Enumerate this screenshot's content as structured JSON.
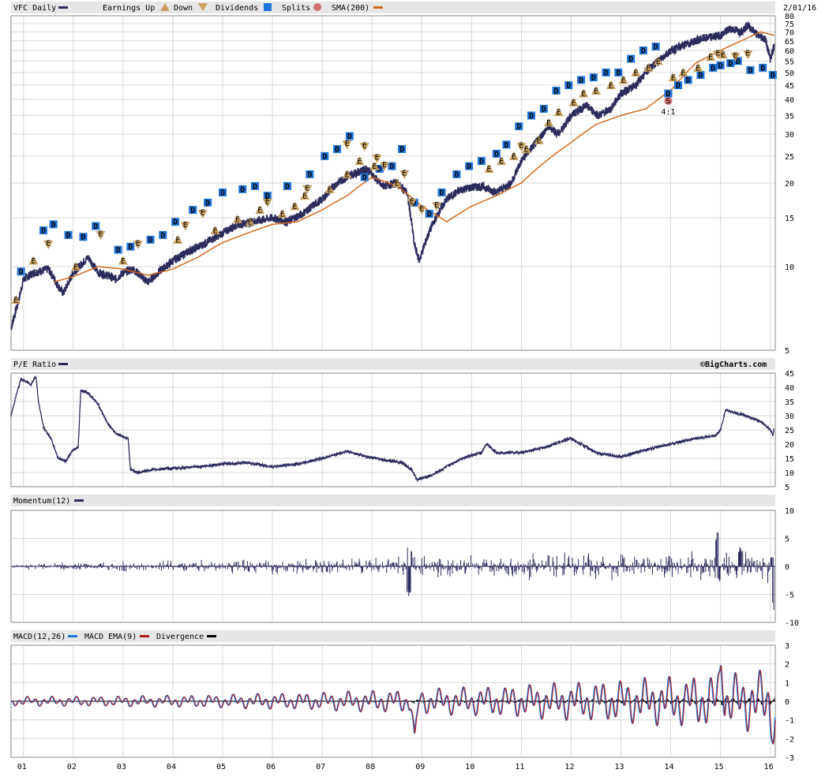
{
  "date_label": "2/01/16",
  "watermark": "©BigCharts.com",
  "legend": {
    "main": {
      "ticker": "VFC Daily",
      "earnings_up": "Earnings Up",
      "down": "Down",
      "dividends": "Dividends",
      "splits": "Splits",
      "sma": "SMA(200)"
    },
    "pe": {
      "label": "P/E Ratio"
    },
    "momentum": {
      "label": "Momentum(12)"
    },
    "macd": {
      "macd": "MACD(12,26)",
      "ema": "MACD EMA(9)",
      "divergence": "Divergence"
    }
  },
  "colors": {
    "price": "#2b2b5c",
    "sma": "#d2691e",
    "dividend": "#1e73d8",
    "earnings": "#c8a060",
    "split": "#d07070",
    "macd": "#1e73d8",
    "macd_ema": "#b01818",
    "divergence": "#000000"
  },
  "chart_data": [
    {
      "type": "line",
      "name": "price",
      "y_scale": "log",
      "ylim": [
        5,
        80
      ],
      "yticks": [
        5,
        10,
        15,
        20,
        25,
        30,
        35,
        40,
        45,
        50,
        55,
        60,
        65,
        70,
        75,
        80
      ],
      "x_ticks": [
        "01",
        "02",
        "03",
        "04",
        "05",
        "06",
        "07",
        "08",
        "09",
        "10",
        "11",
        "12",
        "13",
        "14",
        "15",
        "16"
      ],
      "x_range": [
        2000.75,
        2016.1
      ],
      "series": [
        {
          "name": "VFC Daily",
          "x": [
            2000.75,
            2000.9,
            2001.0,
            2001.2,
            2001.5,
            2001.7,
            2001.8,
            2002.0,
            2002.3,
            2002.5,
            2002.7,
            2002.85,
            2003.0,
            2003.2,
            2003.5,
            2003.7,
            2004.0,
            2004.3,
            2004.6,
            2005.0,
            2005.3,
            2005.6,
            2006.0,
            2006.3,
            2006.6,
            2007.0,
            2007.3,
            2007.6,
            2007.9,
            2008.2,
            2008.5,
            2008.7,
            2008.85,
            2008.95,
            2009.2,
            2009.5,
            2009.8,
            2010.2,
            2010.5,
            2010.8,
            2011.0,
            2011.3,
            2011.55,
            2011.75,
            2012.0,
            2012.3,
            2012.55,
            2012.8,
            2013.0,
            2013.3,
            2013.5,
            2013.8,
            2014.0,
            2014.3,
            2014.6,
            2015.0,
            2015.2,
            2015.4,
            2015.55,
            2015.75,
            2015.9,
            2016.0,
            2016.08
          ],
          "y": [
            6.0,
            7.5,
            9.0,
            9.5,
            9.8,
            8.5,
            8.0,
            9.5,
            10.8,
            9.5,
            9.3,
            9.0,
            9.5,
            9.8,
            8.8,
            9.5,
            10.5,
            11.3,
            12.0,
            13.2,
            14.2,
            14.5,
            15.0,
            14.5,
            15.5,
            17.5,
            20.0,
            21.5,
            22.5,
            19.5,
            20.0,
            18.5,
            12.0,
            10.5,
            14.0,
            17.5,
            19.0,
            19.5,
            18.5,
            20.0,
            24.0,
            28.0,
            32.0,
            30.0,
            35.0,
            38.0,
            35.0,
            37.0,
            42.0,
            45.0,
            50.0,
            56.0,
            60.0,
            63.0,
            66.0,
            68.0,
            72.0,
            70.0,
            74.0,
            68.0,
            66.0,
            56.0,
            62.0
          ]
        },
        {
          "name": "SMA(200)",
          "x": [
            2001.6,
            2002.0,
            2002.5,
            2003.0,
            2003.5,
            2004.0,
            2004.5,
            2005.0,
            2005.5,
            2006.0,
            2006.5,
            2007.0,
            2007.5,
            2008.0,
            2008.5,
            2009.0,
            2009.5,
            2010.0,
            2010.5,
            2011.0,
            2011.5,
            2012.0,
            2012.5,
            2013.0,
            2013.5,
            2014.0,
            2014.5,
            2015.0,
            2015.5,
            2015.8,
            2016.08
          ],
          "y": [
            8.8,
            9.2,
            10.0,
            9.8,
            9.3,
            9.8,
            10.8,
            12.2,
            13.2,
            14.2,
            14.5,
            16.0,
            18.0,
            21.0,
            19.5,
            16.5,
            14.5,
            16.5,
            18.0,
            20.0,
            24.0,
            28.0,
            32.5,
            35.0,
            37.0,
            43.0,
            54.0,
            60.0,
            66.0,
            70.0,
            68.0
          ]
        }
      ],
      "markers": {
        "dividends_x": [
          2000.95,
          2001.4,
          2001.6,
          2001.9,
          2002.2,
          2002.45,
          2002.9,
          2003.15,
          2003.55,
          2003.8,
          2004.05,
          2004.4,
          2004.7,
          2005.0,
          2005.4,
          2005.65,
          2005.9,
          2006.3,
          2006.75,
          2007.05,
          2007.3,
          2007.55,
          2007.85,
          2008.15,
          2008.4,
          2008.6,
          2008.85,
          2009.15,
          2009.4,
          2009.7,
          2009.95,
          2010.2,
          2010.5,
          2010.7,
          2010.95,
          2011.2,
          2011.45,
          2011.7,
          2011.95,
          2012.2,
          2012.45,
          2012.7,
          2012.95,
          2013.2,
          2013.45,
          2013.7,
          2013.95,
          2014.15,
          2014.35,
          2014.6,
          2014.85,
          2015.0,
          2015.2,
          2015.35,
          2015.6,
          2015.85,
          2016.05
        ],
        "dividends_y": [
          9.6,
          13.5,
          14.2,
          13.0,
          12.8,
          14.0,
          11.5,
          11.8,
          12.5,
          13.0,
          14.5,
          16.0,
          17.0,
          18.5,
          19.0,
          19.5,
          18.0,
          19.5,
          21.5,
          25.0,
          26.5,
          29.5,
          21.0,
          22.5,
          23.0,
          26.5,
          17.0,
          15.5,
          18.5,
          21.5,
          23.0,
          24.0,
          25.5,
          27.5,
          32.0,
          35.0,
          37.0,
          43.0,
          45.0,
          47.0,
          48.0,
          50.0,
          50.0,
          56.0,
          60.0,
          62.0,
          42.0,
          45.0,
          47.0,
          49.0,
          52.0,
          53.0,
          54.0,
          55.0,
          51.0,
          52.0,
          49.0
        ],
        "earnings_up_x": [
          2000.85,
          2001.2,
          2002.05,
          2003.0,
          2004.1,
          2004.85,
          2005.3,
          2005.55,
          2005.75,
          2006.2,
          2006.45,
          2006.65,
          2007.15,
          2007.5,
          2007.75,
          2008.05,
          2008.5,
          2010.35,
          2010.6,
          2010.85,
          2011.1,
          2011.35,
          2011.55,
          2011.75,
          2012.05,
          2012.25,
          2012.5,
          2012.8,
          2013.05,
          2013.3,
          2013.55,
          2013.75,
          2014.05,
          2014.25,
          2014.55,
          2014.8,
          2015.05
        ],
        "earnings_up_y": [
          7.6,
          10.5,
          10.0,
          10.5,
          12.5,
          13.5,
          14.8,
          14.5,
          16.0,
          15.5,
          16.5,
          18.0,
          19.0,
          21.5,
          24.0,
          23.0,
          20.0,
          22.5,
          24.0,
          25.0,
          26.5,
          28.5,
          33.0,
          36.0,
          39.0,
          42.0,
          43.0,
          45.0,
          47.0,
          50.0,
          52.0,
          55.0,
          48.0,
          50.0,
          52.0,
          57.0,
          58.0
        ],
        "down_x": [
          2001.5,
          2002.55,
          2003.3,
          2004.25,
          2004.6,
          2005.9,
          2006.7,
          2007.5,
          2007.85,
          2008.1,
          2008.25,
          2008.65,
          2008.8,
          2009.0,
          2009.3,
          2011.0,
          2014.95,
          2015.3,
          2015.55
        ],
        "down_y": [
          12.0,
          13.0,
          12.0,
          14.0,
          15.5,
          17.0,
          19.0,
          27.5,
          27.0,
          24.5,
          23.0,
          21.5,
          17.0,
          16.0,
          16.5,
          27.0,
          58.0,
          57.0,
          58.0
        ],
        "splits": [
          {
            "x": 2013.95,
            "y": 39.5,
            "label": "4:1"
          }
        ]
      }
    },
    {
      "type": "line",
      "name": "pe",
      "ylim": [
        5,
        45
      ],
      "yticks": [
        5,
        10,
        15,
        20,
        25,
        30,
        35,
        40,
        45
      ],
      "series": [
        {
          "name": "P/E Ratio",
          "x": [
            2000.75,
            2000.85,
            2000.95,
            2001.05,
            2001.15,
            2001.25,
            2001.3,
            2001.4,
            2001.55,
            2001.7,
            2001.85,
            2002.0,
            2002.1,
            2002.15,
            2002.3,
            2002.5,
            2002.7,
            2002.85,
            2003.0,
            2003.1,
            2003.15,
            2003.3,
            2003.6,
            2004.0,
            2004.5,
            2005.0,
            2005.5,
            2006.0,
            2006.5,
            2007.0,
            2007.5,
            2007.8,
            2008.2,
            2008.6,
            2008.8,
            2008.9,
            2009.2,
            2009.5,
            2009.8,
            2010.2,
            2010.3,
            2010.5,
            2011.0,
            2011.5,
            2011.8,
            2012.0,
            2012.5,
            2013.0,
            2013.5,
            2014.0,
            2014.5,
            2014.9,
            2015.0,
            2015.1,
            2015.5,
            2015.8,
            2016.0,
            2016.05,
            2016.08
          ],
          "y": [
            30.0,
            37.0,
            43.0,
            42.0,
            41.0,
            44.0,
            35.0,
            26.0,
            22.0,
            15.0,
            14.0,
            18.0,
            19.0,
            39.0,
            38.0,
            34.0,
            27.0,
            24.0,
            22.5,
            22.0,
            11.0,
            10.0,
            11.0,
            11.5,
            12.0,
            13.0,
            13.5,
            12.0,
            13.0,
            15.0,
            17.5,
            16.0,
            14.5,
            13.5,
            11.0,
            7.5,
            9.0,
            12.0,
            15.0,
            17.0,
            20.0,
            17.0,
            17.0,
            19.0,
            21.0,
            22.0,
            17.0,
            15.5,
            18.0,
            20.0,
            22.0,
            23.0,
            25.0,
            32.0,
            30.0,
            28.0,
            25.0,
            23.0,
            26.0
          ]
        }
      ]
    },
    {
      "type": "bar",
      "name": "momentum",
      "ylim": [
        -10,
        10
      ],
      "yticks": [
        -10,
        -5,
        0,
        5,
        10
      ],
      "series": [
        {
          "name": "Momentum(12)",
          "spikes": [
            {
              "x": 2008.75,
              "low": -5.5,
              "high": 3.5
            },
            {
              "x": 2014.95,
              "low": -3.0,
              "high": 6.3
            },
            {
              "x": 2015.4,
              "low": -2.0,
              "high": 3.5
            },
            {
              "x": 2016.05,
              "low": -7.8,
              "high": 2.0
            }
          ]
        }
      ]
    },
    {
      "type": "line",
      "name": "macd",
      "ylim": [
        -3,
        3
      ],
      "yticks": [
        -3,
        -2,
        -1,
        0,
        1,
        2,
        3
      ],
      "series": [
        {
          "name": "MACD(12,26)"
        },
        {
          "name": "MACD EMA(9)"
        },
        {
          "name": "Divergence"
        }
      ],
      "extremes": [
        {
          "x": 2008.85,
          "y": -1.8
        },
        {
          "x": 2015.0,
          "y": 2.0
        },
        {
          "x": 2016.05,
          "y": -2.3
        }
      ]
    }
  ]
}
